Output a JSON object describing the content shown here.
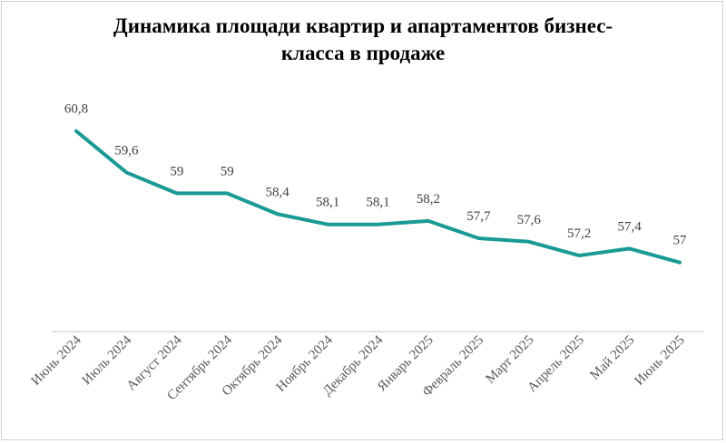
{
  "chart_data": {
    "type": "line",
    "title_lines": [
      "Динамика площади квартир и апартаментов  бизнес-",
      "класса в продаже"
    ],
    "categories": [
      "Июнь 2024",
      "Июль 2024",
      "Август 2024",
      "Сентябрь 2024",
      "Октябрь 2024",
      "Ноябрь 2024",
      "Декабрь 2024",
      "Январь 2025",
      "Февраль 2025",
      "Март 2025",
      "Апрель 2025",
      "Май 2025",
      "Июнь 2025"
    ],
    "values": [
      60.8,
      59.6,
      59,
      59,
      58.4,
      58.1,
      58.1,
      58.2,
      57.7,
      57.6,
      57.2,
      57.4,
      57
    ],
    "labels": [
      "60,8",
      "59,6",
      "59",
      "59",
      "58,4",
      "58,1",
      "58,1",
      "58,2",
      "57,7",
      "57,6",
      "57,2",
      "57,4",
      "57"
    ],
    "ylim": [
      55,
      61
    ],
    "xlabel": "",
    "ylabel": "",
    "grid": false,
    "y_axis_visible": false,
    "line_color": "#1a9a94"
  }
}
